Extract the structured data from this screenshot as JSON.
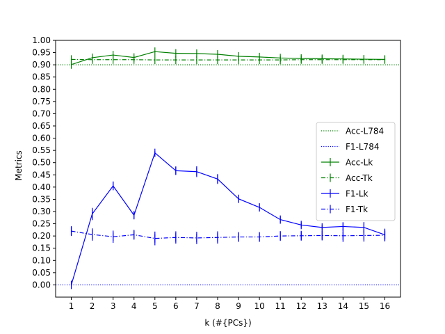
{
  "chart_data": {
    "type": "line",
    "title": "",
    "xlabel": "k (#{PCs})",
    "ylabel": "Metrics",
    "xlim": [
      0.25,
      16.75
    ],
    "ylim": [
      -0.05,
      1.0
    ],
    "xticks": [
      1,
      2,
      3,
      4,
      5,
      6,
      7,
      8,
      9,
      10,
      11,
      12,
      13,
      14,
      15,
      16
    ],
    "yticks": [
      0.0,
      0.05,
      0.1,
      0.15,
      0.2,
      0.25,
      0.3,
      0.35,
      0.4,
      0.45,
      0.5,
      0.55,
      0.6,
      0.65,
      0.7,
      0.75,
      0.8,
      0.85,
      0.9,
      0.95,
      1.0
    ],
    "grid": false,
    "legend_position": "center-right",
    "reference_lines": [
      {
        "name": "Acc-L784",
        "y": 0.9,
        "color": "#008000",
        "style": "dotted"
      },
      {
        "name": "F1-L784",
        "y": 0.0,
        "color": "#0000ff",
        "style": "dotted"
      }
    ],
    "x": [
      1,
      2,
      3,
      4,
      5,
      6,
      7,
      8,
      9,
      10,
      11,
      12,
      13,
      14,
      15,
      16
    ],
    "series": [
      {
        "name": "Acc-Lk",
        "color": "#008000",
        "style": "solid",
        "values": [
          0.901,
          0.929,
          0.94,
          0.93,
          0.954,
          0.947,
          0.946,
          0.943,
          0.935,
          0.932,
          0.928,
          0.926,
          0.925,
          0.924,
          0.923,
          0.922
        ],
        "errors": [
          0.003,
          0.003,
          0.003,
          0.003,
          0.003,
          0.003,
          0.003,
          0.003,
          0.003,
          0.003,
          0.003,
          0.003,
          0.003,
          0.003,
          0.003,
          0.003
        ]
      },
      {
        "name": "Acc-Tk",
        "color": "#008000",
        "style": "dashdot",
        "values": [
          0.922,
          0.921,
          0.921,
          0.921,
          0.92,
          0.92,
          0.92,
          0.92,
          0.92,
          0.92,
          0.92,
          0.921,
          0.921,
          0.921,
          0.921,
          0.921
        ],
        "errors": [
          0.003,
          0.003,
          0.003,
          0.003,
          0.003,
          0.003,
          0.003,
          0.003,
          0.003,
          0.003,
          0.003,
          0.003,
          0.003,
          0.003,
          0.003,
          0.003
        ]
      },
      {
        "name": "F1-Lk",
        "color": "#0000ff",
        "style": "solid",
        "values": [
          0.0,
          0.29,
          0.405,
          0.285,
          0.54,
          0.467,
          0.463,
          0.433,
          0.352,
          0.317,
          0.267,
          0.245,
          0.235,
          0.239,
          0.235,
          0.205
        ],
        "errors": [
          0.002,
          0.025,
          0.018,
          0.015,
          0.007,
          0.017,
          0.022,
          0.02,
          0.015,
          0.015,
          0.013,
          0.01,
          0.01,
          0.017,
          0.022,
          0.025
        ]
      },
      {
        "name": "F1-Tk",
        "color": "#0000ff",
        "style": "dashdot",
        "values": [
          0.22,
          0.206,
          0.197,
          0.205,
          0.19,
          0.194,
          0.192,
          0.194,
          0.196,
          0.196,
          0.2,
          0.201,
          0.202,
          0.201,
          0.202,
          0.203
        ],
        "errors": [
          0.02,
          0.025,
          0.025,
          0.02,
          0.028,
          0.025,
          0.025,
          0.025,
          0.02,
          0.02,
          0.02,
          0.02,
          0.02,
          0.025,
          0.025,
          0.025
        ]
      }
    ],
    "legend": [
      "Acc-L784",
      "F1-L784",
      "Acc-Lk",
      "Acc-Tk",
      "F1-Lk",
      "F1-Tk"
    ]
  }
}
